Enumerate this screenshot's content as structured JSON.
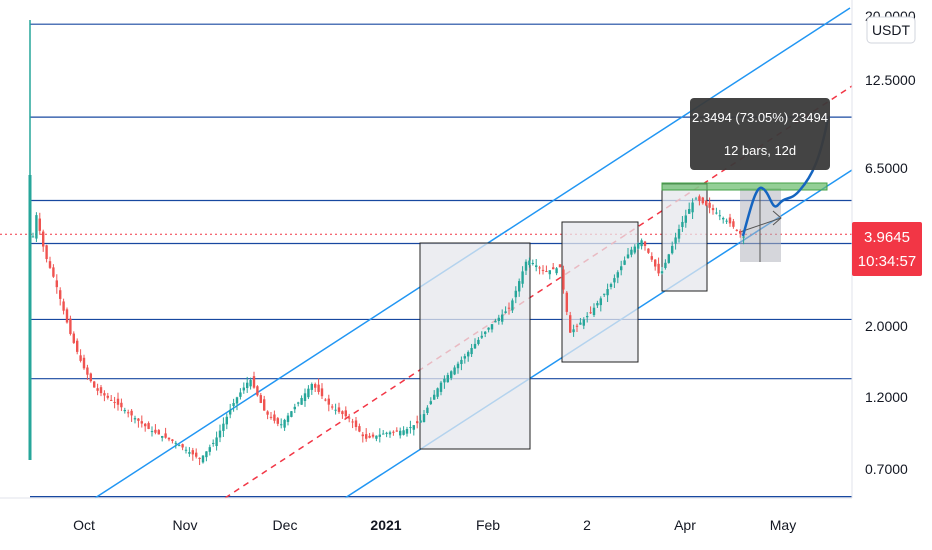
{
  "chart_data": {
    "type": "candlestick",
    "title": "",
    "xlabel": "",
    "ylabel": "",
    "currency": "USDT",
    "y_scale": "log",
    "ylim": [
      0.5,
      20
    ],
    "x_ticks": [
      "Oct",
      "Nov",
      "Dec",
      "2021",
      "Feb",
      "2",
      "Apr",
      "May"
    ],
    "y_ticks": [
      "20.0000",
      "12.5000",
      "6.5000",
      "2.0000",
      "1.2000",
      "0.7000"
    ],
    "price_label": {
      "value": "3.9645",
      "timer": "10:34:57",
      "color": "#f23645"
    },
    "horizontal_levels": [
      19.0,
      9.5,
      5.1,
      3.7,
      2.1,
      1.35,
      0.56
    ],
    "measure_tooltip": {
      "line1": "2.3494 (73.05%) 23494",
      "line2": "12 bars, 12d"
    },
    "colors": {
      "up": "#26a69a",
      "down": "#ef5350",
      "channel": "#2196f3",
      "level": "#1848a0",
      "median": "#f23645",
      "projection": "#1565c0"
    },
    "grid": false,
    "legend": "none"
  }
}
